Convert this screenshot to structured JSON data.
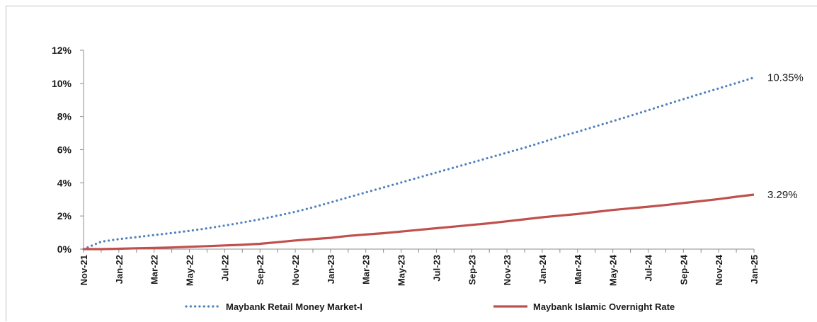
{
  "chart_data": {
    "type": "line",
    "x": [
      "Nov-21",
      "Dec-21",
      "Jan-22",
      "Feb-22",
      "Mar-22",
      "Apr-22",
      "May-22",
      "Jun-22",
      "Jul-22",
      "Aug-22",
      "Sep-22",
      "Oct-22",
      "Nov-22",
      "Dec-22",
      "Jan-23",
      "Feb-23",
      "Mar-23",
      "Apr-23",
      "May-23",
      "Jun-23",
      "Jul-23",
      "Aug-23",
      "Sep-23",
      "Oct-23",
      "Nov-23",
      "Dec-23",
      "Jan-24",
      "Feb-24",
      "Mar-24",
      "Apr-24",
      "May-24",
      "Jun-24",
      "Jul-24",
      "Aug-24",
      "Sep-24",
      "Oct-24",
      "Nov-24",
      "Dec-24",
      "Jan-25"
    ],
    "x_tick_labels": [
      "Nov-21",
      "Jan-22",
      "Mar-22",
      "May-22",
      "Jul-22",
      "Sep-22",
      "Nov-22",
      "Jan-23",
      "Mar-23",
      "May-23",
      "Jul-23",
      "Sep-23",
      "Nov-23",
      "Jan-24",
      "Mar-24",
      "May-24",
      "Jul-24",
      "Sep-24",
      "Nov-24",
      "Jan-25"
    ],
    "y_tick_labels": [
      "0%",
      "2%",
      "4%",
      "6%",
      "8%",
      "10%",
      "12%"
    ],
    "ylim": [
      0,
      12
    ],
    "y_unit": "%",
    "grid": false,
    "legend_position": "bottom",
    "series": [
      {
        "name": "Maybank Retail Money Market-I",
        "color": "#4f81bd",
        "style": "dotted",
        "end_label": "10.35%",
        "values": [
          0.0,
          0.45,
          0.6,
          0.72,
          0.85,
          0.97,
          1.1,
          1.25,
          1.42,
          1.6,
          1.8,
          2.02,
          2.25,
          2.52,
          2.82,
          3.12,
          3.42,
          3.72,
          4.02,
          4.32,
          4.62,
          4.92,
          5.22,
          5.52,
          5.82,
          6.12,
          6.45,
          6.78,
          7.08,
          7.4,
          7.72,
          8.05,
          8.38,
          8.72,
          9.05,
          9.38,
          9.7,
          10.02,
          10.35
        ]
      },
      {
        "name": "Maybank Islamic Overnight Rate",
        "color": "#c0504d",
        "style": "solid",
        "end_label": "3.29%",
        "values": [
          0.0,
          0.0,
          0.02,
          0.05,
          0.07,
          0.1,
          0.14,
          0.18,
          0.22,
          0.26,
          0.32,
          0.42,
          0.52,
          0.6,
          0.68,
          0.8,
          0.88,
          0.96,
          1.06,
          1.16,
          1.26,
          1.36,
          1.46,
          1.56,
          1.68,
          1.8,
          1.92,
          2.02,
          2.12,
          2.24,
          2.36,
          2.46,
          2.56,
          2.66,
          2.78,
          2.9,
          3.02,
          3.16,
          3.29
        ]
      }
    ]
  }
}
